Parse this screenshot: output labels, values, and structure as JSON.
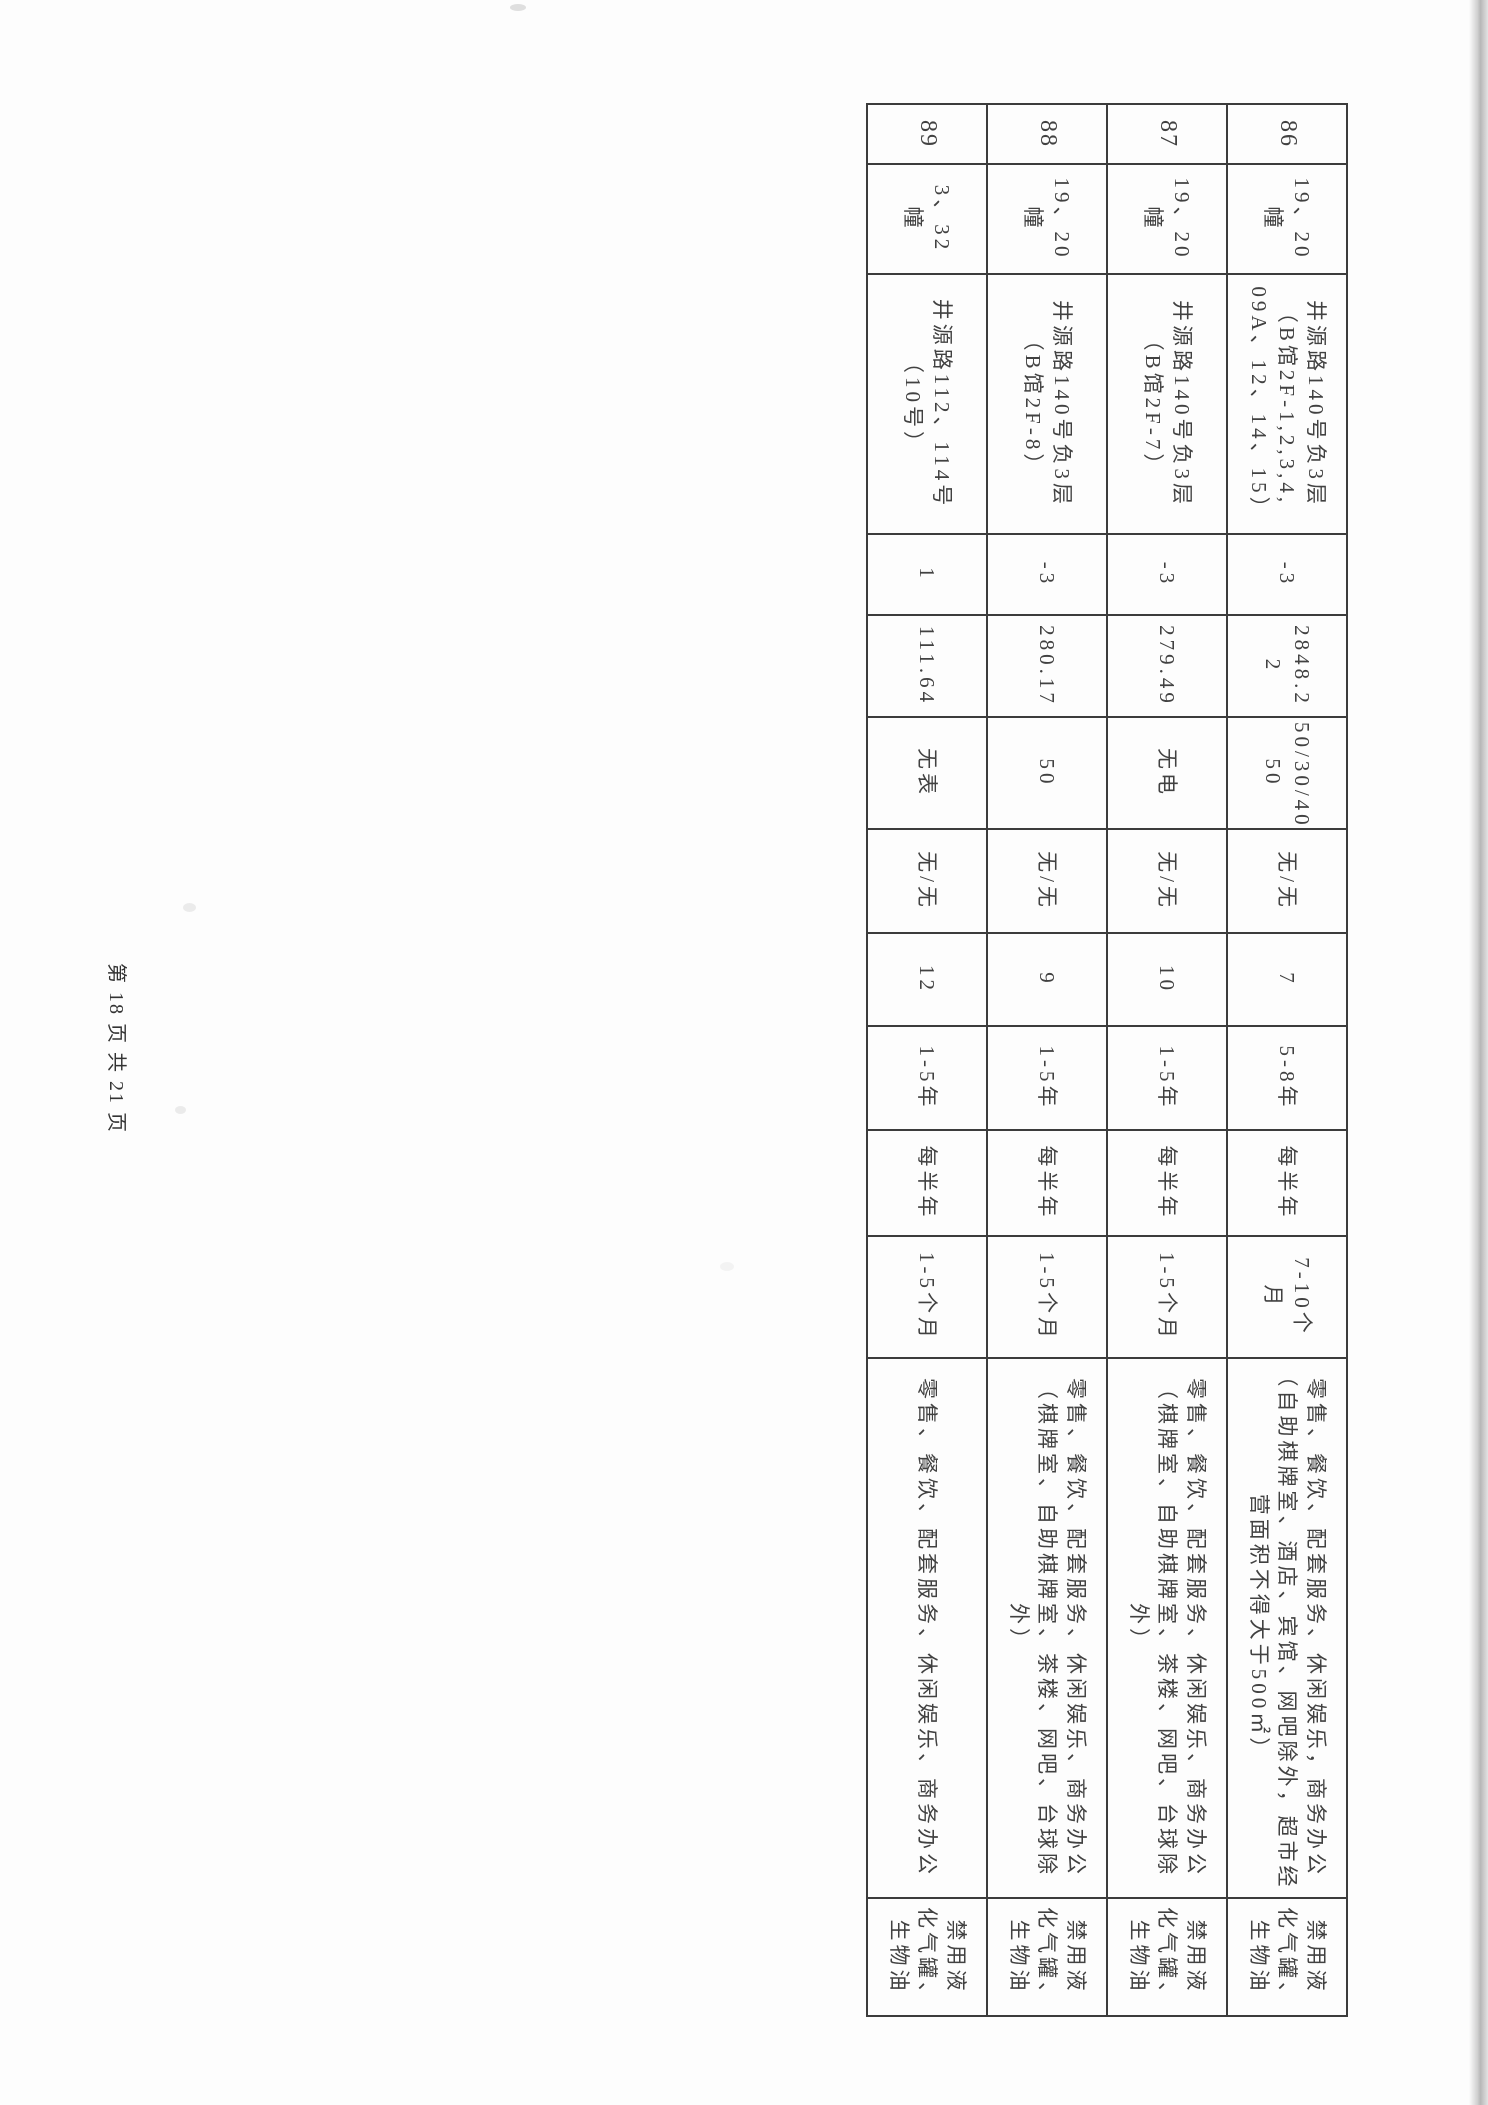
{
  "page": {
    "footer_text": "第 18 页 共 21 页"
  },
  "colors": {
    "ink": "#3a3a3a",
    "paper": "#fdfdfd",
    "grid_line": "#3c3c3c",
    "scan_edge_shadow": "#6e6e6e"
  },
  "table": {
    "rows": [
      [
        "86",
        "19、20\n幢",
        "井源路140号负3层\n（B馆2F-1,2,3,4,\n09A、12、14、15）",
        "-3",
        "2848.2\n2",
        "50/30/40/\n50",
        "无/无",
        "7",
        "5-8年",
        "每半年",
        "7-10个\n月",
        "零售、餐饮、配套服务、休闲娱乐，商务办公\n（自助棋牌室、酒店、宾馆、网吧除外，超市经\n营面积不得大于500㎡）",
        "禁用液\n化气罐、\n生物油"
      ],
      [
        "87",
        "19、20\n幢",
        "井源路140号负3层\n（B馆2F-7）",
        "-3",
        "279.49",
        "无电",
        "无/无",
        "10",
        "1-5年",
        "每半年",
        "1-5个月",
        "零售、餐饮、配套服务、休闲娱乐、商务办公\n（棋牌室、自助棋牌室、茶楼、网吧、台球除外）",
        "禁用液\n化气罐、\n生物油"
      ],
      [
        "88",
        "19、20\n幢",
        "井源路140号负3层\n（B馆2F-8）",
        "-3",
        "280.17",
        "50",
        "无/无",
        "9",
        "1-5年",
        "每半年",
        "1-5个月",
        "零售、餐饮、配套服务、休闲娱乐、商务办公\n（棋牌室、自助棋牌室、茶楼、网吧、台球除外）",
        "禁用液\n化气罐、\n生物油"
      ],
      [
        "89",
        "3、32\n幢",
        "井源路112、114号\n（10号）",
        "1",
        "111.64",
        "无表",
        "无/无",
        "12",
        "1-5年",
        "每半年",
        "1-5个月",
        "零售、餐饮、配套服务、休闲娱乐、商务办公",
        "禁用液\n化气罐、\n生物油"
      ]
    ]
  }
}
